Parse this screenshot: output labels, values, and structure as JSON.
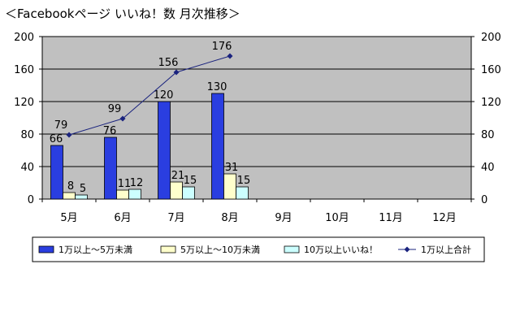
{
  "chart_data": {
    "type": "bar",
    "title": "＜Facebookページ いいね！数 月次推移＞",
    "categories": [
      "5月",
      "6月",
      "7月",
      "8月",
      "9月",
      "10月",
      "11月",
      "12月"
    ],
    "series": [
      {
        "name": "1万以上～5万未満",
        "type": "bar",
        "color": "#2a3ee0",
        "values": [
          66,
          76,
          120,
          130,
          null,
          null,
          null,
          null
        ]
      },
      {
        "name": "5万以上～10万未満",
        "type": "bar",
        "color": "#ffffcc",
        "values": [
          8,
          11,
          21,
          31,
          null,
          null,
          null,
          null
        ]
      },
      {
        "name": "10万以上いいね！",
        "type": "bar",
        "color": "#ccffff",
        "values": [
          5,
          12,
          15,
          15,
          null,
          null,
          null,
          null
        ]
      },
      {
        "name": "1万以上合計",
        "type": "line",
        "axis": "right",
        "color": "#1a237e",
        "values": [
          79,
          99,
          156,
          176,
          null,
          null,
          null,
          null
        ]
      }
    ],
    "ylim": [
      0,
      200
    ],
    "yticks": [
      0,
      40,
      80,
      120,
      160,
      200
    ],
    "y2lim": [
      0,
      200
    ],
    "y2ticks": [
      0,
      40,
      80,
      120,
      160,
      200
    ],
    "grid": true,
    "plot_background": "#c0c0c0",
    "legend_position": "bottom"
  }
}
